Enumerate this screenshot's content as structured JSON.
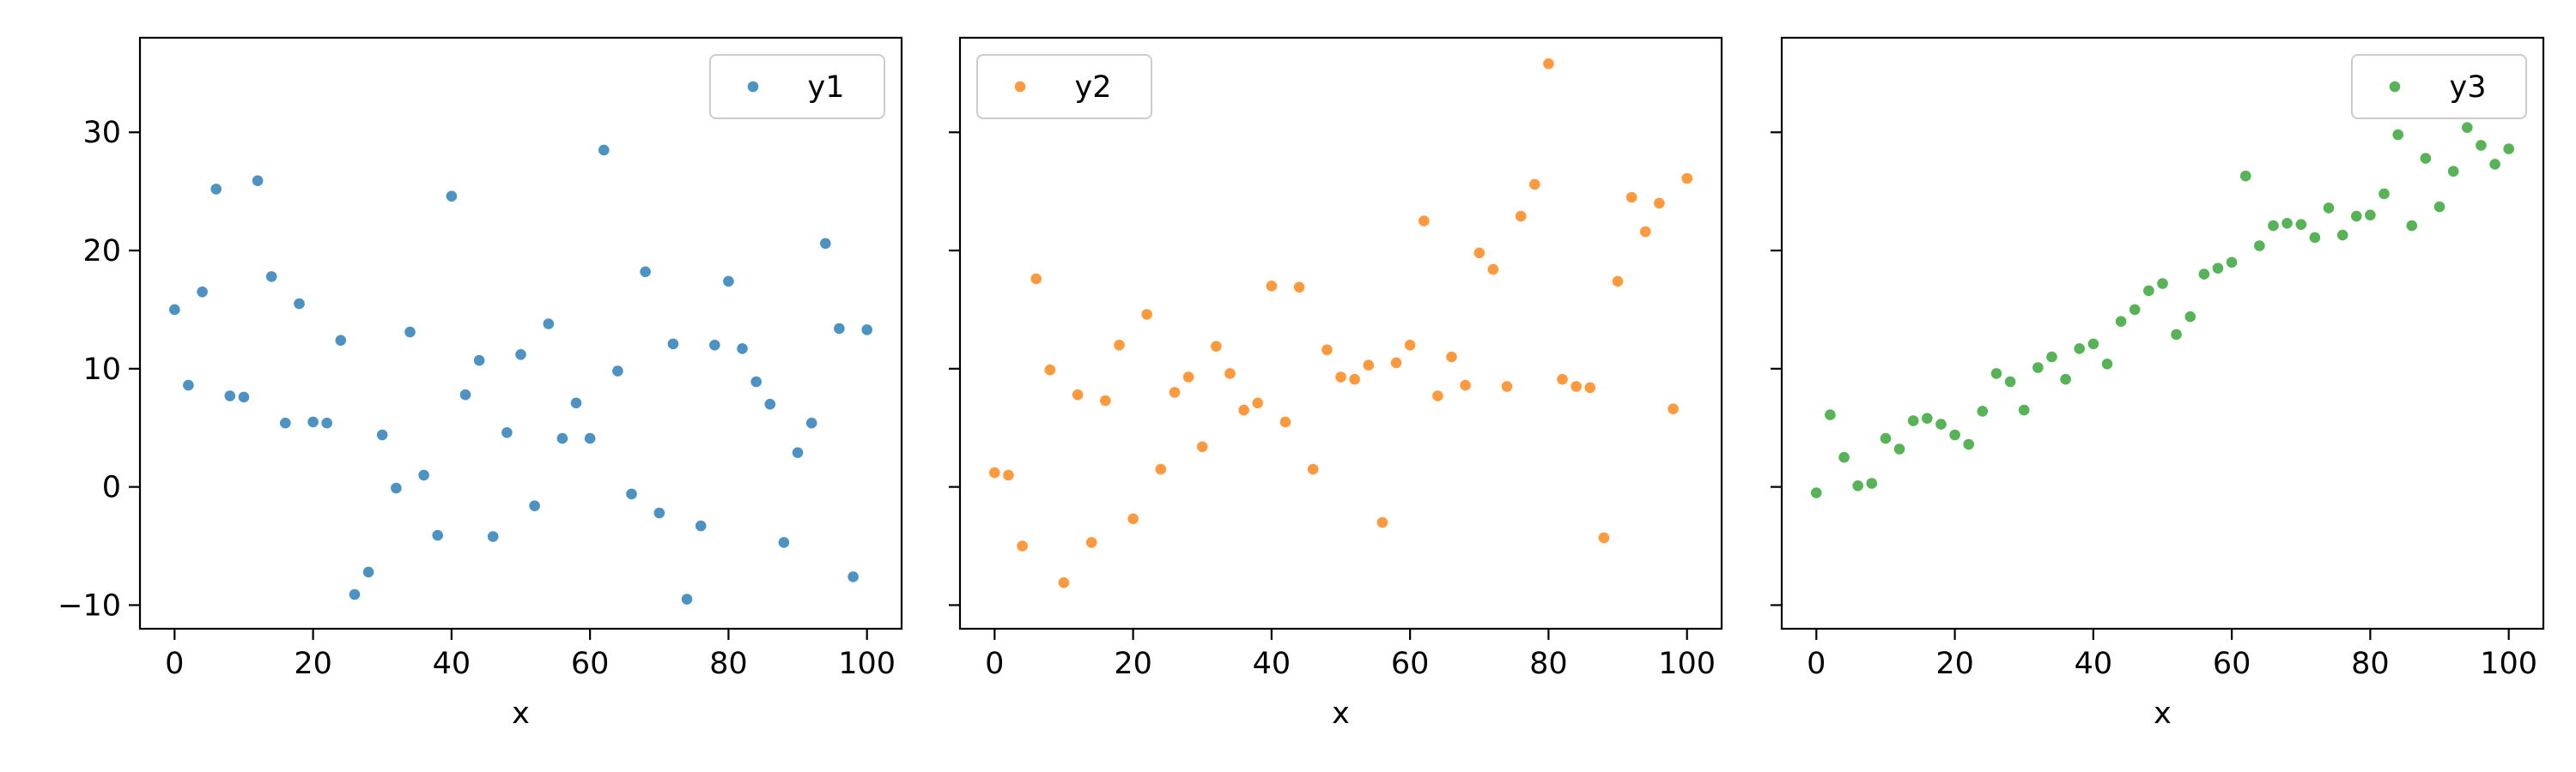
{
  "chart_data": [
    {
      "type": "scatter",
      "xlabel": "x",
      "ylabel": "",
      "xlim": [
        -5,
        105
      ],
      "ylim": [
        -12,
        38
      ],
      "xticks": [
        0,
        20,
        40,
        60,
        80,
        100
      ],
      "yticks": [
        -10,
        0,
        10,
        20,
        30
      ],
      "show_y_tick_labels": true,
      "legend": "upper-right",
      "series": [
        {
          "name": "y1",
          "color": "#1f77b4",
          "x": [
            0,
            2,
            4,
            6,
            8,
            10,
            12,
            14,
            16,
            18,
            20,
            22,
            24,
            26,
            28,
            30,
            32,
            34,
            36,
            38,
            40,
            42,
            44,
            46,
            48,
            50,
            52,
            54,
            56,
            58,
            60,
            62,
            64,
            66,
            68,
            70,
            72,
            74,
            76,
            78,
            80,
            82,
            84,
            86,
            88,
            90,
            92,
            94,
            96,
            98,
            100
          ],
          "y": [
            15,
            8.6,
            16.5,
            25.2,
            7.7,
            7.6,
            25.9,
            17.8,
            5.4,
            15.5,
            5.5,
            5.4,
            12.4,
            -9.1,
            -7.2,
            4.4,
            -0.1,
            13.1,
            1,
            -4.1,
            24.6,
            7.8,
            10.7,
            -4.2,
            4.6,
            11.2,
            -1.6,
            13.8,
            4.1,
            7.1,
            4.1,
            28.5,
            9.8,
            -0.6,
            18.2,
            -2.2,
            12.1,
            -9.5,
            -3.3,
            12,
            17.4,
            11.7,
            8.9,
            7,
            -4.7,
            2.9,
            5.4,
            20.6,
            13.4,
            -7.6,
            13.3
          ]
        }
      ]
    },
    {
      "type": "scatter",
      "xlabel": "x",
      "ylabel": "",
      "xlim": [
        -5,
        105
      ],
      "ylim": [
        -12,
        38
      ],
      "xticks": [
        0,
        20,
        40,
        60,
        80,
        100
      ],
      "yticks": [
        -10,
        0,
        10,
        20,
        30
      ],
      "show_y_tick_labels": false,
      "legend": "upper-left",
      "series": [
        {
          "name": "y2",
          "color": "#ff7f0e",
          "x": [
            0,
            2,
            4,
            6,
            8,
            10,
            12,
            14,
            16,
            18,
            20,
            22,
            24,
            26,
            28,
            30,
            32,
            34,
            36,
            38,
            40,
            42,
            44,
            46,
            48,
            50,
            52,
            54,
            56,
            58,
            60,
            62,
            64,
            66,
            68,
            70,
            72,
            74,
            76,
            78,
            80,
            82,
            84,
            86,
            88,
            90,
            92,
            94,
            96,
            98,
            100
          ],
          "y": [
            1.2,
            1,
            -5,
            17.6,
            9.9,
            -8.1,
            7.8,
            -4.7,
            7.3,
            12,
            -2.7,
            14.6,
            1.5,
            8,
            9.3,
            3.4,
            11.9,
            9.6,
            6.5,
            7.1,
            17,
            5.5,
            16.9,
            1.5,
            11.6,
            9.3,
            9.1,
            10.3,
            -3,
            10.5,
            12,
            22.5,
            7.7,
            11,
            8.6,
            19.8,
            18.4,
            8.5,
            22.9,
            25.6,
            35.8,
            9.1,
            8.5,
            8.4,
            -4.3,
            17.4,
            24.5,
            21.6,
            24,
            6.6,
            26.1
          ]
        }
      ]
    },
    {
      "type": "scatter",
      "xlabel": "x",
      "ylabel": "",
      "xlim": [
        -5,
        105
      ],
      "ylim": [
        -12,
        38
      ],
      "xticks": [
        0,
        20,
        40,
        60,
        80,
        100
      ],
      "yticks": [
        -10,
        0,
        10,
        20,
        30
      ],
      "show_y_tick_labels": false,
      "legend": "upper-right",
      "series": [
        {
          "name": "y3",
          "color": "#2ca02c",
          "x": [
            0,
            2,
            4,
            6,
            8,
            10,
            12,
            14,
            16,
            18,
            20,
            22,
            24,
            26,
            28,
            30,
            32,
            34,
            36,
            38,
            40,
            42,
            44,
            46,
            48,
            50,
            52,
            54,
            56,
            58,
            60,
            62,
            64,
            66,
            68,
            70,
            72,
            74,
            76,
            78,
            80,
            82,
            84,
            86,
            88,
            90,
            92,
            94,
            96,
            98,
            100
          ],
          "y": [
            -0.5,
            6.1,
            2.5,
            0.1,
            0.3,
            4.1,
            3.2,
            5.6,
            5.8,
            5.3,
            4.4,
            3.6,
            6.4,
            9.6,
            8.9,
            6.5,
            10.1,
            11,
            9.1,
            11.7,
            12.1,
            10.4,
            14,
            15,
            16.6,
            17.2,
            12.9,
            14.4,
            18,
            18.5,
            19,
            26.3,
            20.4,
            22.1,
            22.3,
            22.2,
            21.1,
            23.6,
            21.3,
            22.9,
            23,
            24.8,
            29.8,
            22.1,
            27.8,
            23.7,
            26.7,
            30.4,
            28.9,
            27.3,
            28.6
          ]
        }
      ]
    }
  ]
}
